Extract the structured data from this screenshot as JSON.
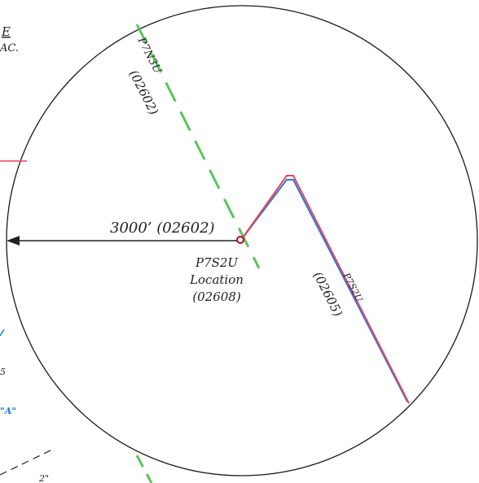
{
  "labels": {
    "radius_label": "3000’ (02602)",
    "location_name": "P7S2U",
    "location_word": "Location",
    "location_code": "(02608)",
    "branch_upper_name": "P7N3U",
    "branch_upper_code": "(02602)",
    "branch_right_name": "P7S2U",
    "branch_right_code": "(02605)",
    "edge_top_1": "E",
    "edge_top_2": "AC.",
    "edge_mid_5": "5",
    "edge_blue_a": "\"A\"",
    "edge_bottom": "2\""
  },
  "colors": {
    "circle": "#1a1a1a",
    "radius_arrow": "#222222",
    "green_dash": "#5cc35c",
    "red_line": "#e8455e",
    "blue_line": "#2e78d6",
    "blue_text": "#1a78d8"
  }
}
